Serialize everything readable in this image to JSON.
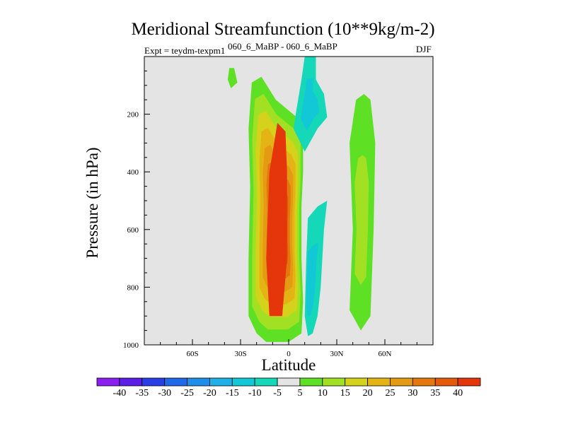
{
  "chart_data": {
    "type": "contour",
    "title": "Meridional Streamfunction (10**9kg/m-2)",
    "left_string": "Expt = teydm-texpm1",
    "center_string": "060_6_MaBP - 060_6_MaBP",
    "right_string": "DJF",
    "xlabel": "Latitude",
    "ylabel": "Pressure (in hPa)",
    "xlim": [
      -90,
      90
    ],
    "ylim": [
      1000,
      0
    ],
    "x_ticks": [
      {
        "value": -60,
        "label": "60S"
      },
      {
        "value": -30,
        "label": "30S"
      },
      {
        "value": 0,
        "label": "0"
      },
      {
        "value": 30,
        "label": "30N"
      },
      {
        "value": 60,
        "label": "60N"
      }
    ],
    "y_ticks": [
      {
        "value": 200,
        "label": "200"
      },
      {
        "value": 400,
        "label": "400"
      },
      {
        "value": 600,
        "label": "600"
      },
      {
        "value": 800,
        "label": "800"
      },
      {
        "value": 1000,
        "label": "1000"
      }
    ],
    "colorbar": {
      "levels": [
        -40,
        -35,
        -30,
        -25,
        -20,
        -15,
        -10,
        -5,
        5,
        10,
        15,
        20,
        25,
        30,
        35,
        40
      ],
      "colors": [
        "#8a1ff0",
        "#5a1ee6",
        "#2a3ee6",
        "#1e6ae8",
        "#1e8ee8",
        "#1eb0e6",
        "#12c8d6",
        "#14d8b8",
        "#e4e4e4",
        "#5ee025",
        "#a2e024",
        "#d4d21a",
        "#e4b414",
        "#e49a12",
        "#e4780e",
        "#e45a0a",
        "#e4360a"
      ]
    },
    "regions": [
      {
        "name": "positive-cell-sh",
        "levels": [
          5,
          10,
          15,
          20,
          25,
          30,
          35,
          40
        ],
        "outline": [
          [
            -14,
            990
          ],
          [
            -20,
            960
          ],
          [
            -25,
            900
          ],
          [
            -25,
            700
          ],
          [
            -24,
            450
          ],
          [
            -25,
            250
          ],
          [
            -23,
            90
          ],
          [
            -17,
            70
          ],
          [
            -8,
            150
          ],
          [
            5,
            210
          ],
          [
            9,
            260
          ],
          [
            9,
            400
          ],
          [
            8,
            520
          ],
          [
            8,
            700
          ],
          [
            9,
            850
          ],
          [
            8,
            960
          ],
          [
            0,
            990
          ]
        ],
        "peak": [
          -5,
          600
        ]
      },
      {
        "name": "small-positive-blob",
        "levels": [
          5
        ],
        "outline": [
          [
            -37,
            40
          ],
          [
            -34,
            40
          ],
          [
            -32,
            90
          ],
          [
            -36,
            110
          ],
          [
            -38,
            80
          ]
        ]
      },
      {
        "name": "negative-upper-tropics",
        "levels": [
          -5,
          -10
        ],
        "outline": [
          [
            10,
            330
          ],
          [
            3,
            250
          ],
          [
            5,
            180
          ],
          [
            8,
            80
          ],
          [
            10,
            0
          ],
          [
            17,
            0
          ],
          [
            17,
            80
          ],
          [
            22,
            130
          ],
          [
            24,
            210
          ],
          [
            18,
            250
          ],
          [
            13,
            300
          ]
        ],
        "peak": [
          13,
          170
        ]
      },
      {
        "name": "negative-lower-tropics",
        "levels": [
          -5,
          -10
        ],
        "outline": [
          [
            12,
            970
          ],
          [
            10,
            900
          ],
          [
            11,
            700
          ],
          [
            12,
            560
          ],
          [
            18,
            520
          ],
          [
            24,
            500
          ],
          [
            22,
            600
          ],
          [
            20,
            800
          ],
          [
            18,
            900
          ],
          [
            15,
            960
          ]
        ],
        "peak": [
          12,
          820
        ]
      },
      {
        "name": "positive-cell-nh",
        "levels": [
          5,
          10
        ],
        "outline": [
          [
            38,
            880
          ],
          [
            40,
            600
          ],
          [
            38,
            300
          ],
          [
            42,
            150
          ],
          [
            47,
            130
          ],
          [
            51,
            150
          ],
          [
            54,
            300
          ],
          [
            53,
            600
          ],
          [
            51,
            900
          ],
          [
            45,
            950
          ]
        ],
        "peak": [
          45,
          600
        ]
      }
    ]
  }
}
